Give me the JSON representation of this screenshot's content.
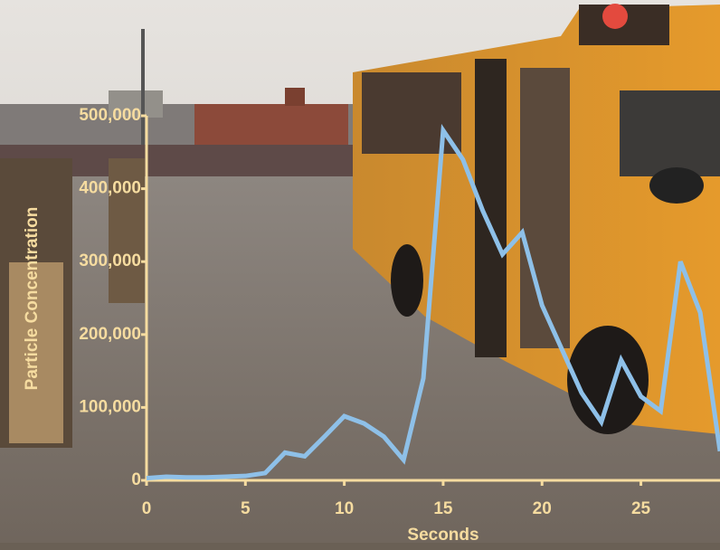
{
  "chart_data": {
    "type": "line",
    "xlabel": "Seconds",
    "ylabel": "Particle Concentration",
    "x": [
      0,
      1,
      2,
      3,
      4,
      5,
      6,
      7,
      8,
      9,
      10,
      11,
      12,
      13,
      14,
      15,
      16,
      17,
      18,
      19,
      20,
      21,
      22,
      23,
      24,
      25,
      26,
      27,
      28,
      29
    ],
    "series": [
      {
        "color": "#8ec0e8",
        "values": [
          3000,
          5000,
          4000,
          4000,
          5000,
          6000,
          10000,
          38000,
          33000,
          60000,
          88000,
          78000,
          60000,
          28000,
          140000,
          480000,
          440000,
          370000,
          310000,
          340000,
          240000,
          180000,
          120000,
          80000,
          165000,
          115000,
          95000,
          300000,
          230000,
          40000
        ]
      }
    ],
    "xlim": [
      0,
      29
    ],
    "ylim": [
      0,
      500000
    ],
    "xticks": [
      0,
      5,
      10,
      15,
      20,
      25
    ],
    "yticks": [
      0,
      {
        "value": 100000,
        "label": "100,000"
      },
      {
        "value": 200000,
        "label": "200,000"
      },
      {
        "value": 300000,
        "label": "300,000"
      },
      {
        "value": 400000,
        "label": "400,000"
      },
      {
        "value": 500000,
        "label": "500,000"
      }
    ],
    "axis_color": "#f6dca0"
  }
}
